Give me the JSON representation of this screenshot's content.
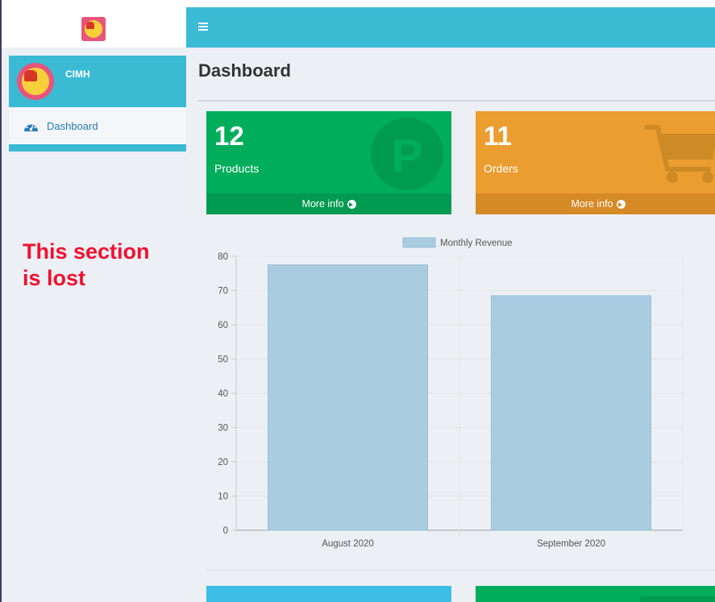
{
  "sidebar": {
    "user_name": "CIMH",
    "menu": [
      {
        "label": "Dashboard",
        "icon": "tachometer-icon",
        "active": true
      }
    ]
  },
  "annotation": {
    "line1": "This section",
    "line2": "is lost",
    "color": "#f01030"
  },
  "header": {
    "menu_icon": "hamburger-icon",
    "color": "#3bbad4"
  },
  "page": {
    "title": "Dashboard"
  },
  "boxes": [
    {
      "value": "12",
      "label": "Products",
      "footer": "More info",
      "icon": "parking-icon",
      "icon_letter": "P",
      "color": "#00ad5a"
    },
    {
      "value": "11",
      "label": "Orders",
      "footer": "More info",
      "icon": "shopping-cart-icon",
      "color": "#eb9d30"
    }
  ],
  "chart_data": {
    "type": "bar",
    "categories": [
      "August 2020",
      "September 2020"
    ],
    "series": [
      {
        "name": "Monthly Revenue",
        "values": [
          77.5,
          68.5
        ],
        "color": "#a9cce1"
      }
    ],
    "ylim": [
      0,
      80
    ],
    "yticks": [
      0,
      10,
      20,
      30,
      40,
      50,
      60,
      70,
      80
    ],
    "grid": true,
    "legend": "top"
  }
}
